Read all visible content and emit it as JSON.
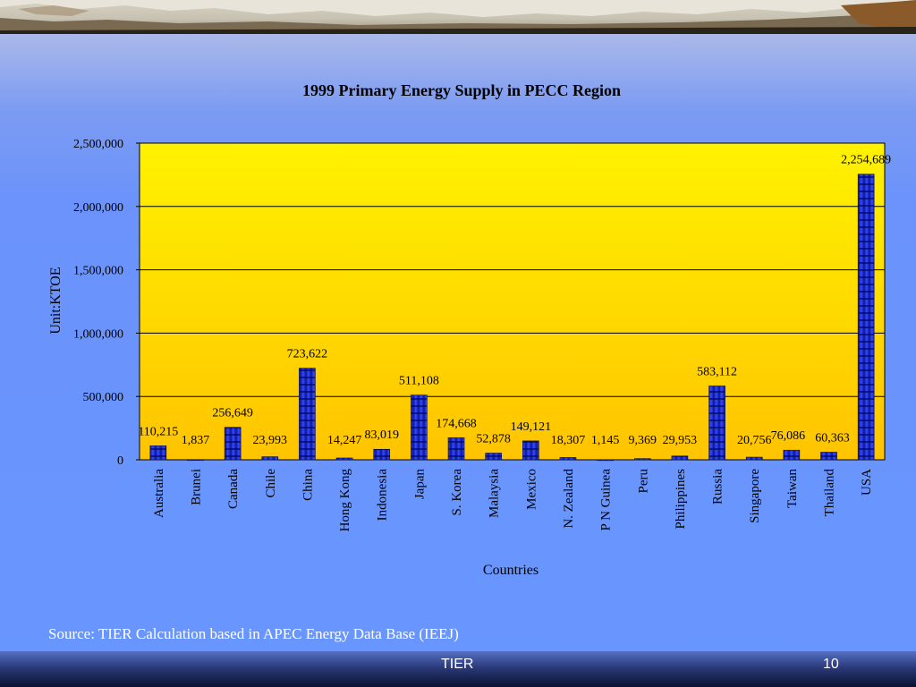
{
  "slide": {
    "source_note": "Source: TIER Calculation based in APEC Energy Data Base (IEEJ)",
    "footer_left": "TIER",
    "footer_right": "10"
  },
  "colors": {
    "plot_fill_top": "#fff000",
    "plot_fill_bottom": "#ffc800",
    "bar_dark": "#0a1ba0",
    "bar_light": "#4d5cff",
    "background": "#6896ff"
  },
  "chart_data": {
    "type": "bar",
    "title": "1999 Primary Energy Supply in PECC Region",
    "xlabel": "Countries",
    "ylabel": "Unit:KTOE",
    "ylim": [
      0,
      2500000
    ],
    "yticks": [
      0,
      500000,
      1000000,
      1500000,
      2000000,
      2500000
    ],
    "ytick_labels": [
      "0",
      "500,000",
      "1,000,000",
      "1,500,000",
      "2,000,000",
      "2,500,000"
    ],
    "grid": true,
    "categories": [
      "Australia",
      "Brunei",
      "Canada",
      "Chile",
      "China",
      "Hong Kong",
      "Indonesia",
      "Japan",
      "S. Korea",
      "Malaysia",
      "Mexico",
      "N. Zealand",
      "P N Guinea",
      "Peru",
      "Philippines",
      "Russia",
      "Singapore",
      "Taiwan",
      "Thailand",
      "USA"
    ],
    "values": [
      110215,
      1837,
      256649,
      23993,
      723622,
      14247,
      83019,
      511108,
      174668,
      52878,
      149121,
      18307,
      1145,
      9369,
      29953,
      583112,
      20756,
      76086,
      60363,
      2254689
    ],
    "data_labels": [
      "110,215",
      "1,837",
      "256,649",
      "23,993",
      "723,622",
      "14,247",
      "83,019",
      "511,108",
      "174,668",
      "52,878",
      "149,121",
      "18,307",
      "1,145",
      "9,369",
      "29,953",
      "583,112",
      "20,756",
      "76,086",
      "60,363",
      "2,254,689"
    ]
  }
}
